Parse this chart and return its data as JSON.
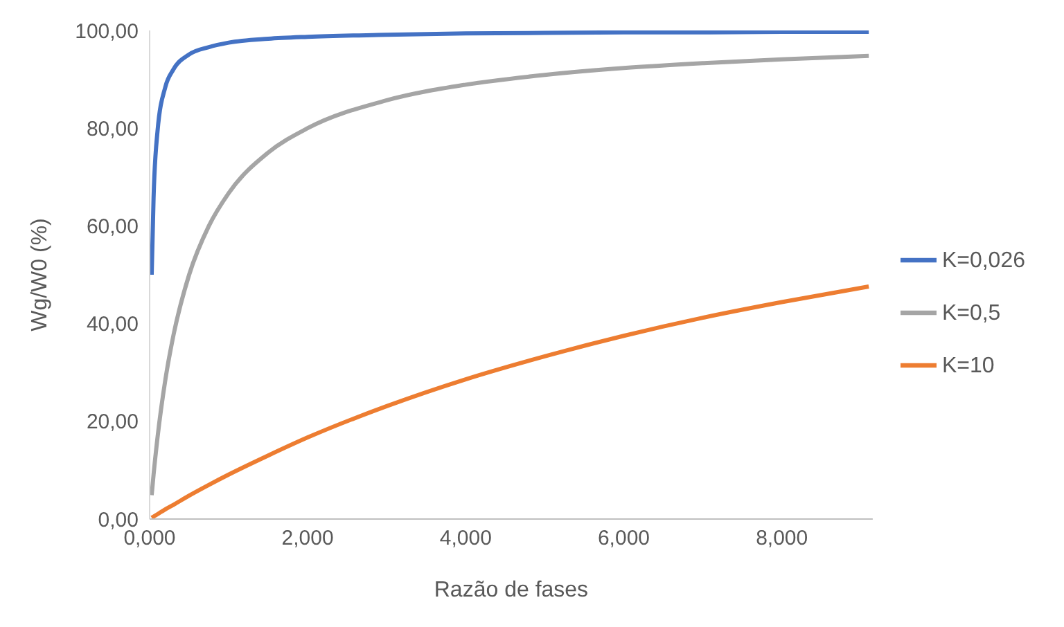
{
  "chart_data": {
    "type": "line",
    "xlabel": "Razão de fases",
    "ylabel": "Wg/W0 (%)",
    "x": [
      0.026,
      0.05,
      0.1,
      0.2,
      0.3,
      0.5,
      0.75,
      1,
      1.5,
      2,
      3,
      4,
      5,
      6,
      7,
      8,
      9.1
    ],
    "series": [
      {
        "name": "K=0,026",
        "color": "#4472c4",
        "values": [
          50,
          65.8,
          79.4,
          88.5,
          92,
          95.1,
          96.6,
          97.5,
          98.3,
          98.7,
          99.1,
          99.4,
          99.5,
          99.6,
          99.6,
          99.7,
          99.7
        ]
      },
      {
        "name": "K=0,5",
        "color": "#a5a5a5",
        "values": [
          4.9,
          9.1,
          16.7,
          28.6,
          37.5,
          50,
          60,
          66.7,
          75,
          80,
          85.7,
          88.9,
          90.9,
          92.3,
          93.3,
          94.1,
          94.8
        ]
      },
      {
        "name": "K=10",
        "color": "#ed7d31",
        "values": [
          0.26,
          0.5,
          1,
          2,
          2.9,
          4.8,
          7,
          9.1,
          13,
          16.7,
          23.1,
          28.6,
          33.3,
          37.5,
          41.2,
          44.4,
          47.6
        ]
      }
    ],
    "xlim": [
      0,
      9.15
    ],
    "xticks": [
      {
        "value": 0,
        "label": "0,000"
      },
      {
        "value": 2,
        "label": "2,000"
      },
      {
        "value": 4,
        "label": "4,000"
      },
      {
        "value": 6,
        "label": "6,000"
      },
      {
        "value": 8,
        "label": "8,000"
      }
    ],
    "ylim": [
      0,
      100
    ],
    "yticks": [
      {
        "value": 0,
        "label": "0,00"
      },
      {
        "value": 20,
        "label": "20,00"
      },
      {
        "value": 40,
        "label": "40,00"
      },
      {
        "value": 60,
        "label": "60,00"
      },
      {
        "value": 80,
        "label": "80,00"
      },
      {
        "value": 100,
        "label": "100,00"
      }
    ],
    "grid": false,
    "legend": "right",
    "marker": "none",
    "line_style": "solid"
  }
}
